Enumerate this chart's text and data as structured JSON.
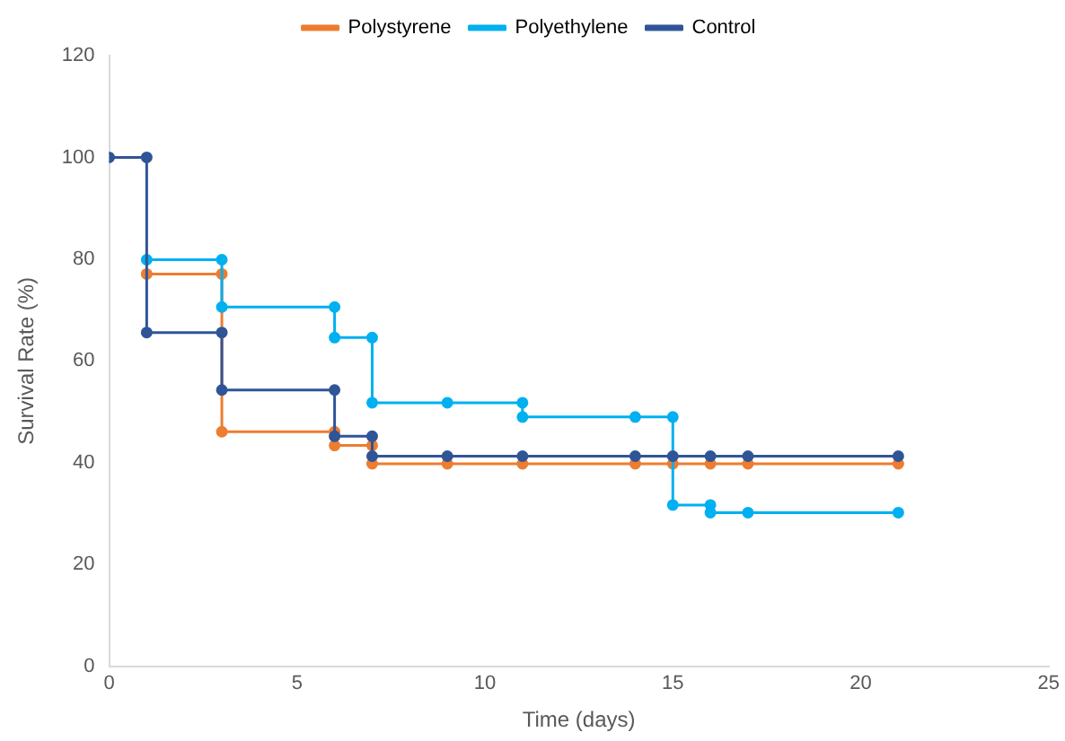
{
  "chart_data": {
    "type": "line",
    "xlabel": "Time (days)",
    "ylabel": "Survival Rate (%)",
    "xlim": [
      0,
      25
    ],
    "xticks": [
      0,
      5,
      10,
      15,
      20,
      25
    ],
    "ylim": [
      0,
      120
    ],
    "yticks": [
      0,
      20,
      40,
      60,
      80,
      100,
      120
    ],
    "grid": false,
    "legend": "top",
    "marker": "circle",
    "line_style": "solid",
    "series": [
      {
        "name": "Polystyrene",
        "color": "#ed7d31",
        "x": [
          1,
          3,
          3,
          6,
          6,
          7,
          7,
          9,
          11,
          14,
          15,
          16,
          17,
          21
        ],
        "values": [
          77.1,
          77.1,
          46.1,
          46.1,
          43.4,
          43.4,
          39.8,
          39.8,
          39.8,
          39.8,
          39.8,
          39.8,
          39.8,
          39.8
        ]
      },
      {
        "name": "Polyethylene",
        "color": "#00b0f0",
        "x": [
          1,
          3,
          3,
          6,
          6,
          7,
          7,
          9,
          11,
          11,
          14,
          15,
          15,
          16,
          16,
          17,
          21
        ],
        "values": [
          79.9,
          79.9,
          70.6,
          70.6,
          64.6,
          64.6,
          51.8,
          51.8,
          51.8,
          49.0,
          49.0,
          49.0,
          31.7,
          31.7,
          30.2,
          30.2,
          30.2
        ]
      },
      {
        "name": "Control",
        "color": "#2f5597",
        "x": [
          0,
          1,
          1,
          3,
          3,
          6,
          6,
          7,
          7,
          9,
          11,
          14,
          15,
          16,
          17,
          21
        ],
        "values": [
          100,
          100,
          65.6,
          65.6,
          54.3,
          54.3,
          45.2,
          45.2,
          41.3,
          41.3,
          41.3,
          41.3,
          41.3,
          41.3,
          41.3,
          41.3
        ]
      }
    ]
  }
}
